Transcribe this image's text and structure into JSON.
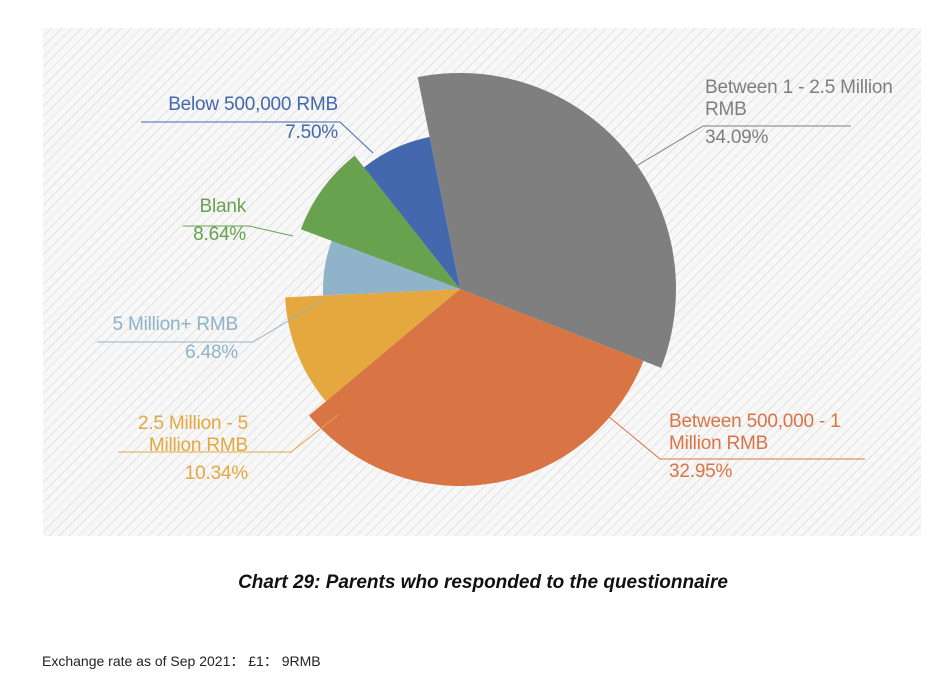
{
  "chart_data": {
    "type": "pie",
    "title": "",
    "slices": [
      {
        "label": "Between 1 - 2.5 Million RMB",
        "value": 34.09,
        "value_label": "34.09%",
        "color": "#7f7f7f"
      },
      {
        "label": "Between 500,000 - 1 Million RMB",
        "value": 32.95,
        "value_label": "32.95%",
        "color": "#d97444"
      },
      {
        "label": "2.5 Million - 5 Million RMB",
        "value": 10.34,
        "value_label": "10.34%",
        "color": "#e4a83e"
      },
      {
        "label": "5 Million+ RMB",
        "value": 6.48,
        "value_label": "6.48%",
        "color": "#8fb3c8"
      },
      {
        "label": "Blank",
        "value": 8.64,
        "value_label": "8.64%",
        "color": "#69a24f"
      },
      {
        "label": "Below 500,000 RMB",
        "value": 7.5,
        "value_label": "7.50%",
        "color": "#4468ad"
      }
    ],
    "legend": "none",
    "labels_placement": "outside-with-leader-lines"
  },
  "caption": "Chart 29: Parents who responded to the questionnaire",
  "footnote": "Exchange rate as of Sep 2021： £1： 9RMB"
}
